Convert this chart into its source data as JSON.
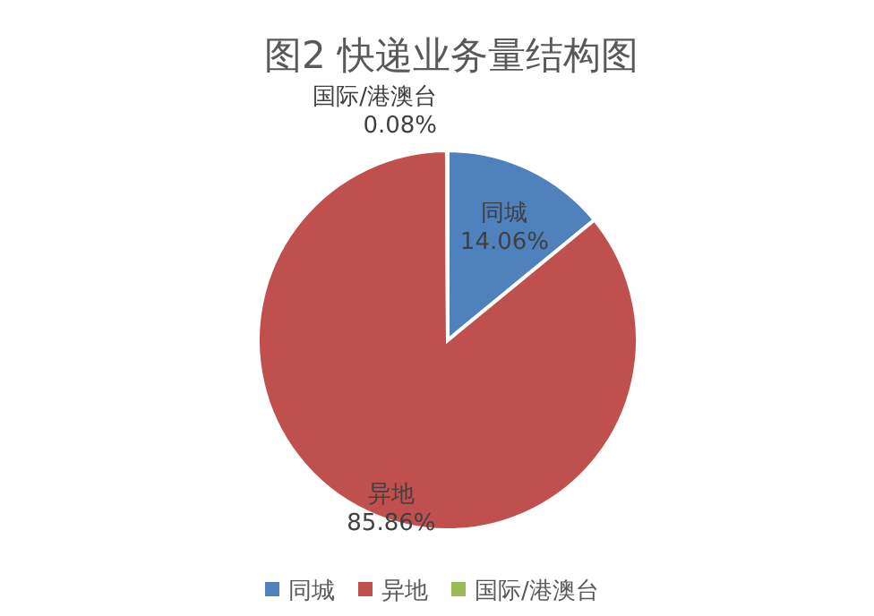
{
  "chart_data": {
    "type": "pie",
    "title": "图2  快递业务量结构图",
    "categories": [
      "同城",
      "异地",
      "国际/港澳台"
    ],
    "values": [
      14.06,
      85.86,
      0.08
    ],
    "colors": [
      "#4f81bd",
      "#c0504d",
      "#9bbb59"
    ],
    "value_labels": [
      "14.06%",
      "85.86%",
      "0.08%"
    ],
    "legend": "bottom"
  }
}
